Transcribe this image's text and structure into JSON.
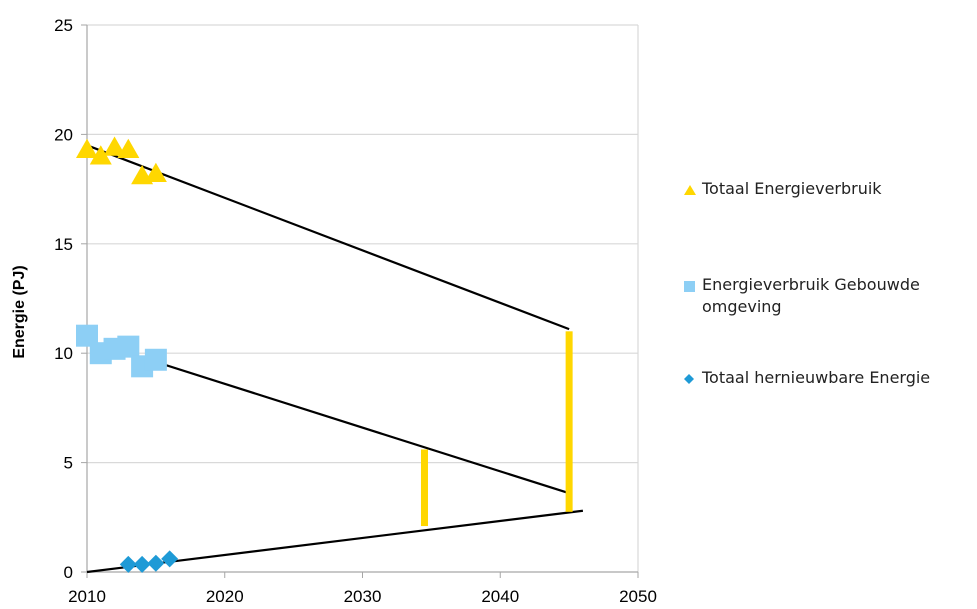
{
  "chart_data": {
    "type": "scatter",
    "title": "",
    "xlabel": "",
    "ylabel": "Energie (PJ)",
    "xlim": [
      2010,
      2050
    ],
    "ylim": [
      0,
      25
    ],
    "x_ticks": [
      "2010",
      "2020",
      "2030",
      "2040",
      "2050"
    ],
    "y_ticks": [
      "0",
      "5",
      "10",
      "15",
      "20",
      "25"
    ],
    "grid": "horizontal",
    "legend_position": "right",
    "series": [
      {
        "name": "Totaal Energieverbruik",
        "marker": "triangle",
        "color": "#FFD700",
        "points": [
          {
            "x": 2010,
            "y": 19.3
          },
          {
            "x": 2011,
            "y": 19.0
          },
          {
            "x": 2012,
            "y": 19.4
          },
          {
            "x": 2013,
            "y": 19.3
          },
          {
            "x": 2014,
            "y": 18.1
          },
          {
            "x": 2015,
            "y": 18.2
          }
        ]
      },
      {
        "name": "Energieverbruik Gebouwde omgeving",
        "marker": "square",
        "color": "#8DCFF5",
        "points": [
          {
            "x": 2010,
            "y": 10.8
          },
          {
            "x": 2011,
            "y": 10.0
          },
          {
            "x": 2012,
            "y": 10.2
          },
          {
            "x": 2013,
            "y": 10.3
          },
          {
            "x": 2014,
            "y": 9.4
          },
          {
            "x": 2015,
            "y": 9.7
          }
        ]
      },
      {
        "name": "Totaal hernieuwbare Energie",
        "marker": "diamond",
        "color": "#1E9AD6",
        "points": [
          {
            "x": 2013,
            "y": 0.35
          },
          {
            "x": 2014,
            "y": 0.35
          },
          {
            "x": 2015,
            "y": 0.4
          },
          {
            "x": 2016,
            "y": 0.6
          }
        ]
      }
    ],
    "trendlines": [
      {
        "x1": 2010,
        "y1": 19.5,
        "x2": 2045,
        "y2": 11.1,
        "color": "#000000"
      },
      {
        "x1": 2010,
        "y1": 10.6,
        "x2": 2045,
        "y2": 3.6,
        "color": "#000000"
      },
      {
        "x1": 2010,
        "y1": 0.0,
        "x2": 2046,
        "y2": 2.8,
        "color": "#000000"
      }
    ],
    "gap_bars": [
      {
        "x": 2034.5,
        "y1": 2.1,
        "y2": 5.6,
        "color": "#FFD700"
      },
      {
        "x": 2045,
        "y1": 2.75,
        "y2": 11.0,
        "color": "#FFD700"
      }
    ]
  }
}
